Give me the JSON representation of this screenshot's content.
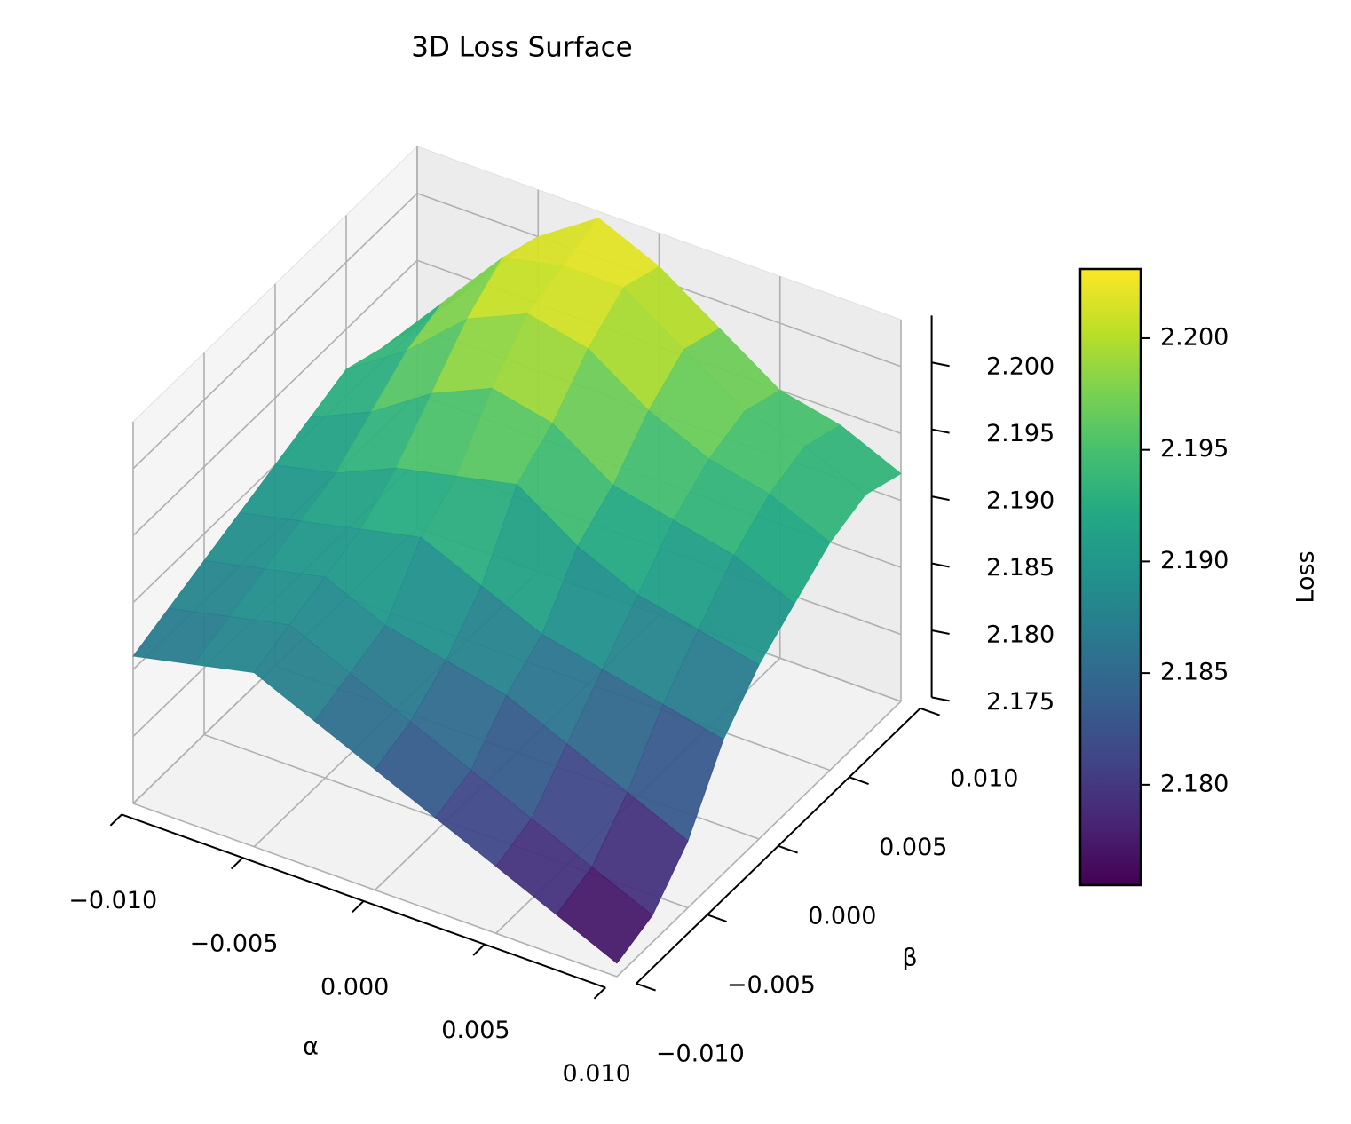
{
  "chart_data": {
    "type": "surface",
    "title": "3D Loss Surface",
    "xlabel": "α",
    "ylabel": "β",
    "zlabel": "Loss",
    "colorbar_label": "Loss",
    "colormap": "viridis",
    "x": [
      -0.01,
      -0.0075,
      -0.005,
      -0.0025,
      0,
      0.0025,
      0.005,
      0.0075,
      0.01
    ],
    "y": [
      -0.01,
      -0.0075,
      -0.005,
      -0.0025,
      0,
      0.0025,
      0.005,
      0.0075,
      0.01
    ],
    "z": [
      [
        2.186,
        2.187,
        2.188,
        2.186,
        2.184,
        2.182,
        2.18,
        2.178,
        2.176
      ],
      [
        2.187,
        2.188,
        2.189,
        2.187,
        2.185,
        2.183,
        2.181,
        2.179,
        2.177
      ],
      [
        2.188,
        2.189,
        2.19,
        2.188,
        2.187,
        2.186,
        2.184,
        2.182,
        2.18
      ],
      [
        2.189,
        2.19,
        2.191,
        2.192,
        2.19,
        2.188,
        2.187,
        2.186,
        2.185
      ],
      [
        2.19,
        2.191,
        2.193,
        2.194,
        2.195,
        2.192,
        2.19,
        2.189,
        2.188
      ],
      [
        2.191,
        2.193,
        2.196,
        2.198,
        2.197,
        2.194,
        2.193,
        2.192,
        2.19
      ],
      [
        2.192,
        2.195,
        2.199,
        2.201,
        2.2,
        2.197,
        2.195,
        2.194,
        2.192
      ],
      [
        2.191,
        2.196,
        2.201,
        2.202,
        2.202,
        2.199,
        2.196,
        2.195,
        2.193
      ],
      [
        2.19,
        2.195,
        2.2,
        2.203,
        2.201,
        2.198,
        2.195,
        2.194,
        2.192
      ]
    ],
    "xlim": [
      -0.01,
      0.01
    ],
    "ylim": [
      -0.01,
      0.01
    ],
    "zlim": [
      2.175,
      2.2035
    ],
    "xticks": [
      {
        "value": -0.01,
        "label": "−0.010"
      },
      {
        "value": -0.005,
        "label": "−0.005"
      },
      {
        "value": 0,
        "label": "0.000"
      },
      {
        "value": 0.005,
        "label": "0.005"
      },
      {
        "value": 0.01,
        "label": "0.010"
      }
    ],
    "yticks": [
      {
        "value": -0.01,
        "label": "−0.010"
      },
      {
        "value": -0.005,
        "label": "−0.005"
      },
      {
        "value": 0,
        "label": "0.000"
      },
      {
        "value": 0.005,
        "label": "0.005"
      },
      {
        "value": 0.01,
        "label": "0.010"
      }
    ],
    "zticks": [
      2.175,
      {
        "value": 2.18,
        "label": "2.180"
      },
      2.185,
      {
        "value": 2.19,
        "label": "2.190"
      },
      2.195,
      {
        "value": 2.2,
        "label": "2.200"
      }
    ],
    "clim": [
      2.1755,
      2.2031
    ],
    "cticks": [
      {
        "value": 2.18,
        "label": "2.180"
      },
      2.185,
      {
        "value": 2.19,
        "label": "2.190"
      },
      2.195,
      {
        "value": 2.2,
        "label": "2.200"
      }
    ],
    "grid": true
  }
}
